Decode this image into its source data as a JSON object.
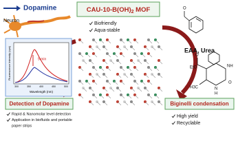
{
  "top_left": {
    "label": "Dopamine",
    "neuron": "Neuron"
  },
  "center": {
    "title_main": "CAU-10-B(OH)",
    "title_sub": "2",
    "title_end": " MOF",
    "features": [
      "Biofriendly",
      "Aqua-stable"
    ]
  },
  "plot": {
    "y_label": "Fluorescence Intensity (cps)",
    "x_label": "Wavelength (nm)",
    "annotation": "5 min",
    "x_ticks": [
      "300",
      "350",
      "400",
      "450",
      "500"
    ]
  },
  "left": {
    "title": "Detection of Dopamine",
    "features": [
      "Rapid & Nanomolar level detection",
      "Application in biofluids and portable",
      "paper strips"
    ]
  },
  "right": {
    "reagents": "EAA, Urea",
    "title": "Biginelli condensation",
    "features": [
      "High yield",
      "Recyclable"
    ],
    "atoms": {
      "ester": "EtO",
      "o1": "O",
      "o2": "O",
      "o3": "O",
      "methyl": "H3C",
      "n1": "N",
      "h": "H",
      "nh": "NH"
    }
  }
}
